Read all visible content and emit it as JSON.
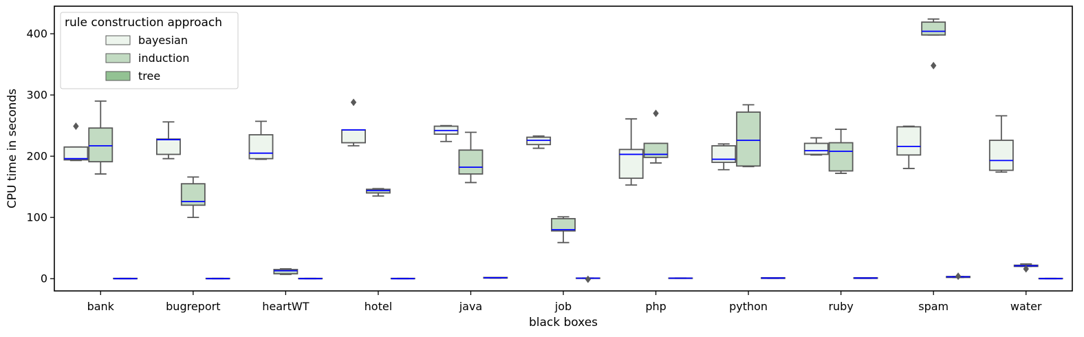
{
  "chart_data": {
    "type": "box",
    "xlabel": "black boxes",
    "ylabel": "CPU time in seconds",
    "ylim": [
      -20,
      445
    ],
    "yticks": [
      0,
      100,
      200,
      300,
      400
    ],
    "categories": [
      "bank",
      "bugreport",
      "heartWT",
      "hotel",
      "java",
      "job",
      "php",
      "python",
      "ruby",
      "spam",
      "water"
    ],
    "legend": {
      "title": "rule construction approach",
      "placement": "top-left",
      "entries": [
        {
          "name": "bayesian",
          "color": "#edf5ed"
        },
        {
          "name": "induction",
          "color": "#c2dbc2"
        },
        {
          "name": "tree",
          "color": "#93c293"
        }
      ]
    },
    "colors": {
      "median": "#0000ff",
      "box_edge": "#595959"
    },
    "series": [
      {
        "name": "bayesian",
        "boxes": [
          {
            "whislo": 193,
            "q1": 194,
            "med": 196,
            "q3": 215,
            "whishi": 215,
            "fliers": [
              249
            ]
          },
          {
            "whislo": 196,
            "q1": 203,
            "med": 227,
            "q3": 228,
            "whishi": 256,
            "fliers": []
          },
          {
            "whislo": 195,
            "q1": 196,
            "med": 205,
            "q3": 235,
            "whishi": 257,
            "fliers": []
          },
          {
            "whislo": 217,
            "q1": 222,
            "med": 243,
            "q3": 243,
            "whishi": 243,
            "fliers": [
              288
            ]
          },
          {
            "whislo": 224,
            "q1": 236,
            "med": 242,
            "q3": 249,
            "whishi": 250,
            "fliers": []
          },
          {
            "whislo": 213,
            "q1": 219,
            "med": 226,
            "q3": 231,
            "whishi": 233,
            "fliers": []
          },
          {
            "whislo": 153,
            "q1": 164,
            "med": 203,
            "q3": 211,
            "whishi": 261,
            "fliers": []
          },
          {
            "whislo": 178,
            "q1": 190,
            "med": 195,
            "q3": 217,
            "whishi": 220,
            "fliers": []
          },
          {
            "whislo": 202,
            "q1": 203,
            "med": 209,
            "q3": 221,
            "whishi": 230,
            "fliers": []
          },
          {
            "whislo": 180,
            "q1": 202,
            "med": 216,
            "q3": 248,
            "whishi": 249,
            "fliers": []
          },
          {
            "whislo": 174,
            "q1": 177,
            "med": 193,
            "q3": 226,
            "whishi": 266,
            "fliers": []
          }
        ]
      },
      {
        "name": "induction",
        "boxes": [
          {
            "whislo": 171,
            "q1": 191,
            "med": 217,
            "q3": 246,
            "whishi": 290,
            "fliers": []
          },
          {
            "whislo": 100,
            "q1": 120,
            "med": 126,
            "q3": 155,
            "whishi": 166,
            "fliers": []
          },
          {
            "whislo": 7,
            "q1": 8,
            "med": 13,
            "q3": 15,
            "whishi": 16,
            "fliers": []
          },
          {
            "whislo": 135,
            "q1": 140,
            "med": 144,
            "q3": 146,
            "whishi": 147,
            "fliers": []
          },
          {
            "whislo": 157,
            "q1": 171,
            "med": 182,
            "q3": 210,
            "whishi": 239,
            "fliers": []
          },
          {
            "whislo": 59,
            "q1": 78,
            "med": 80,
            "q3": 98,
            "whishi": 101,
            "fliers": []
          },
          {
            "whislo": 189,
            "q1": 198,
            "med": 203,
            "q3": 221,
            "whishi": 221,
            "fliers": [
              270
            ]
          },
          {
            "whislo": 183,
            "q1": 184,
            "med": 226,
            "q3": 272,
            "whishi": 284,
            "fliers": []
          },
          {
            "whislo": 172,
            "q1": 176,
            "med": 208,
            "q3": 222,
            "whishi": 244,
            "fliers": []
          },
          {
            "whislo": 398,
            "q1": 398,
            "med": 404,
            "q3": 419,
            "whishi": 424,
            "fliers": [
              348
            ]
          },
          {
            "whislo": 20,
            "q1": 20,
            "med": 21,
            "q3": 22,
            "whishi": 24,
            "fliers": [
              16
            ]
          }
        ]
      },
      {
        "name": "tree",
        "boxes": [
          {
            "whislo": 0,
            "q1": 0,
            "med": 0,
            "q3": 0.5,
            "whishi": 0.5,
            "fliers": []
          },
          {
            "whislo": 0,
            "q1": 0,
            "med": 0,
            "q3": 0.5,
            "whishi": 0.5,
            "fliers": []
          },
          {
            "whislo": 0,
            "q1": 0,
            "med": 0,
            "q3": 0.5,
            "whishi": 0.5,
            "fliers": []
          },
          {
            "whislo": 0,
            "q1": 0,
            "med": 0,
            "q3": 0.5,
            "whishi": 0.5,
            "fliers": []
          },
          {
            "whislo": 1,
            "q1": 1,
            "med": 1.5,
            "q3": 2,
            "whishi": 2,
            "fliers": []
          },
          {
            "whislo": 0.5,
            "q1": 0.5,
            "med": 0.8,
            "q3": 1,
            "whishi": 1,
            "fliers": [
              -1
            ]
          },
          {
            "whislo": 0.5,
            "q1": 0.5,
            "med": 0.8,
            "q3": 1,
            "whishi": 1,
            "fliers": []
          },
          {
            "whislo": 0.5,
            "q1": 0.5,
            "med": 1,
            "q3": 1.5,
            "whishi": 1.5,
            "fliers": []
          },
          {
            "whislo": 0.5,
            "q1": 0.5,
            "med": 1,
            "q3": 1.5,
            "whishi": 1.5,
            "fliers": []
          },
          {
            "whislo": 2,
            "q1": 2,
            "med": 3,
            "q3": 3.5,
            "whishi": 3.5,
            "fliers": [
              4
            ]
          },
          {
            "whislo": 0,
            "q1": 0,
            "med": 0,
            "q3": 0.5,
            "whishi": 0.5,
            "fliers": []
          }
        ]
      }
    ]
  }
}
